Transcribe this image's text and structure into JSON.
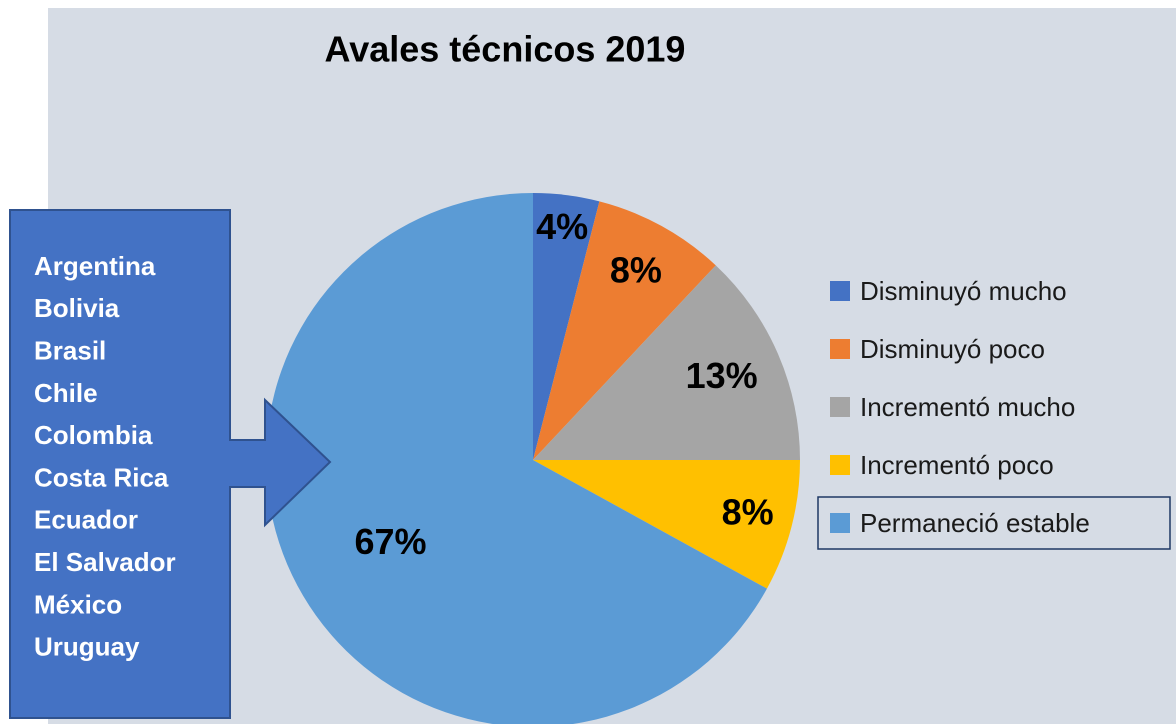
{
  "chart_data": {
    "type": "pie",
    "title": "Avales técnicos 2019",
    "categories": [
      "Disminuyó mucho",
      "Disminuyó poco",
      "Incrementó mucho",
      "Incrementó poco",
      "Permaneció estable"
    ],
    "values": [
      4,
      8,
      13,
      8,
      67
    ],
    "value_labels": [
      "4%",
      "8%",
      "13%",
      "8%",
      "67%"
    ],
    "colors": [
      "#4472c4",
      "#ed7d31",
      "#a5a5a5",
      "#ffc000",
      "#5b9bd5"
    ],
    "legend": "right",
    "annotations": [
      "Argentina",
      "Bolivia",
      "Brasil",
      "Chile",
      "Colombia",
      "Costa Rica",
      "Ecuador",
      "El Salvador",
      "México",
      "Uruguay"
    ]
  }
}
